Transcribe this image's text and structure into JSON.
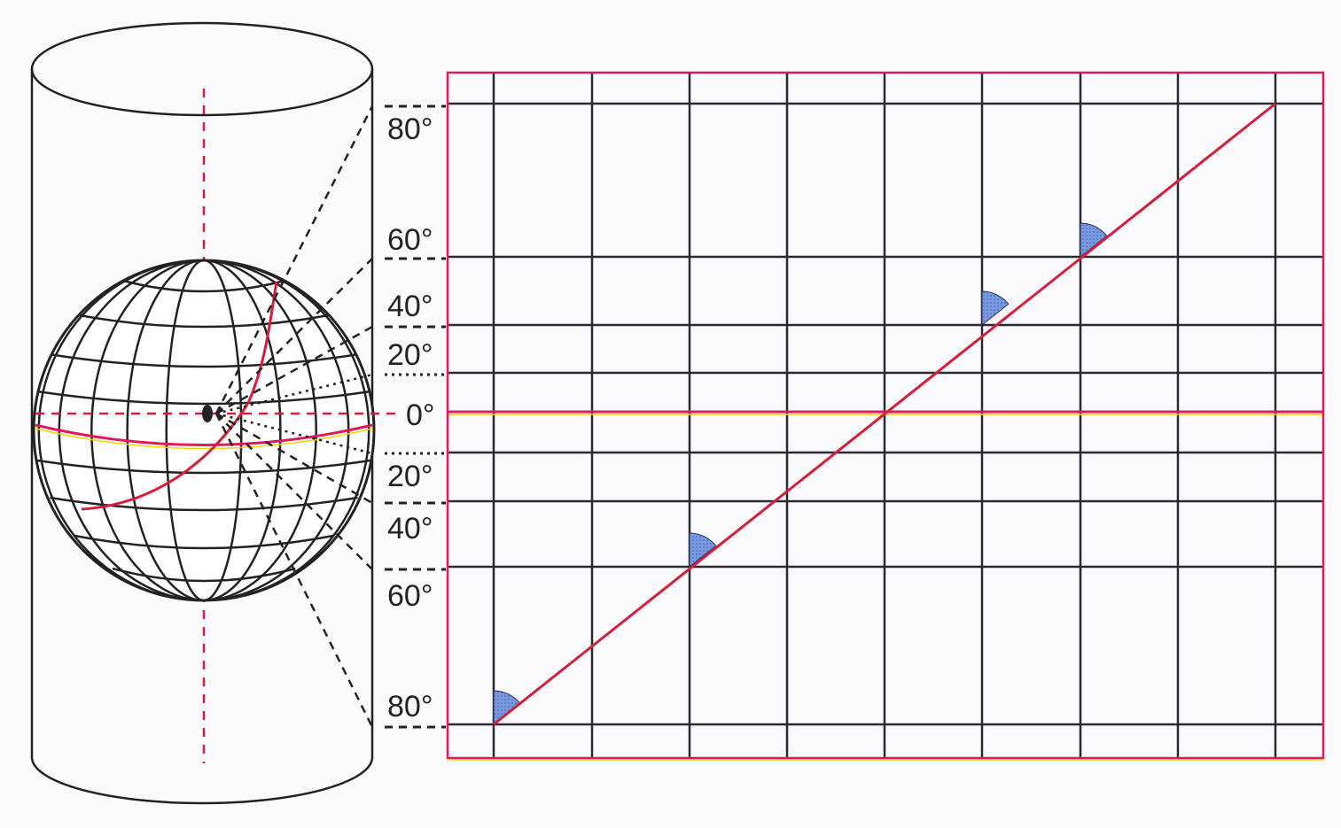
{
  "diagram": {
    "type": "cylindrical-projection",
    "latitude_labels": [
      {
        "id": "n80",
        "text": "80°"
      },
      {
        "id": "n60",
        "text": "60°"
      },
      {
        "id": "n40",
        "text": "40°"
      },
      {
        "id": "n20",
        "text": "20°"
      },
      {
        "id": "eq",
        "text": "0°"
      },
      {
        "id": "s20",
        "text": "20°"
      },
      {
        "id": "s40",
        "text": "40°"
      },
      {
        "id": "s60",
        "text": "60°"
      },
      {
        "id": "s80",
        "text": "80°"
      }
    ],
    "colors": {
      "grid": "#2a2a33",
      "map_border": "#e0195a",
      "equator": "#e0195a",
      "equator_highlight": "#f2d400",
      "rhumb_line": "#d41f3a",
      "angle_marker": "#6f8fd6",
      "axis": "#d41f3a",
      "projection_rays": "#222222"
    }
  }
}
